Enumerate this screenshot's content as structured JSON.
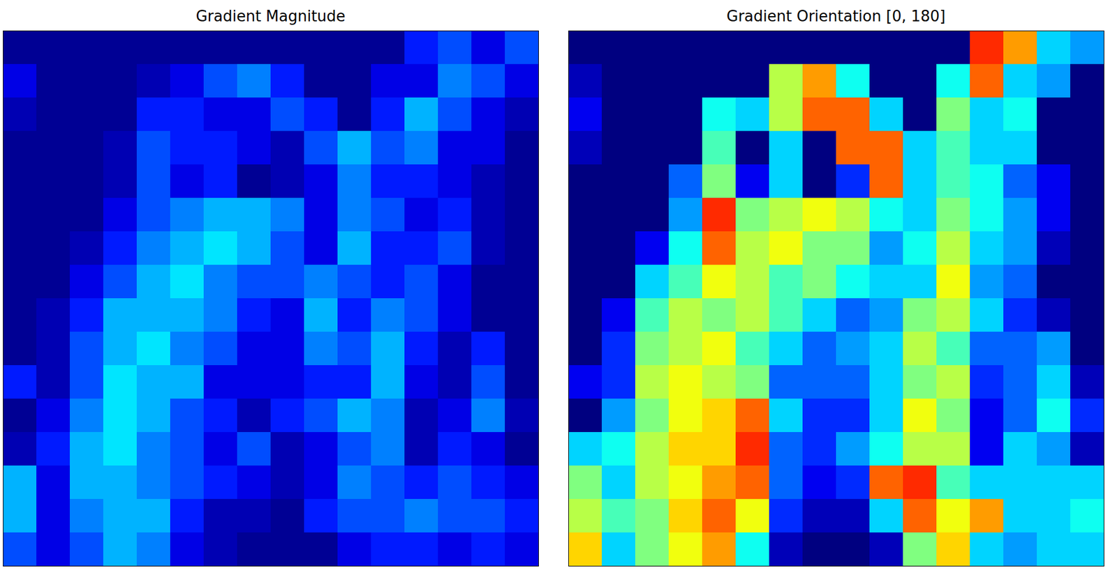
{
  "chart_data": [
    {
      "type": "heatmap",
      "title": "Gradient Magnitude",
      "tick_labels": false,
      "zlim": [
        0,
        1
      ],
      "values": [
        [
          0.02,
          0.02,
          0.02,
          0.02,
          0.02,
          0.02,
          0.02,
          0.02,
          0.02,
          0.02,
          0.02,
          0.02,
          0.15,
          0.2,
          0.1,
          0.2
        ],
        [
          0.1,
          0.02,
          0.02,
          0.02,
          0.05,
          0.1,
          0.2,
          0.25,
          0.15,
          0.02,
          0.02,
          0.1,
          0.1,
          0.25,
          0.2,
          0.1
        ],
        [
          0.05,
          0.02,
          0.02,
          0.02,
          0.15,
          0.15,
          0.1,
          0.1,
          0.2,
          0.15,
          0.02,
          0.15,
          0.3,
          0.2,
          0.1,
          0.05
        ],
        [
          0.02,
          0.02,
          0.02,
          0.05,
          0.2,
          0.15,
          0.15,
          0.1,
          0.05,
          0.2,
          0.3,
          0.2,
          0.25,
          0.1,
          0.1,
          0.02
        ],
        [
          0.02,
          0.02,
          0.02,
          0.05,
          0.2,
          0.1,
          0.15,
          0.02,
          0.05,
          0.1,
          0.25,
          0.15,
          0.15,
          0.1,
          0.05,
          0.02
        ],
        [
          0.02,
          0.02,
          0.02,
          0.1,
          0.2,
          0.25,
          0.3,
          0.3,
          0.25,
          0.1,
          0.25,
          0.2,
          0.1,
          0.15,
          0.05,
          0.02
        ],
        [
          0.02,
          0.02,
          0.05,
          0.15,
          0.25,
          0.3,
          0.35,
          0.3,
          0.2,
          0.1,
          0.3,
          0.15,
          0.15,
          0.2,
          0.05,
          0.02
        ],
        [
          0.02,
          0.02,
          0.1,
          0.2,
          0.3,
          0.35,
          0.25,
          0.2,
          0.2,
          0.25,
          0.2,
          0.15,
          0.2,
          0.1,
          0.02,
          0.02
        ],
        [
          0.02,
          0.05,
          0.15,
          0.3,
          0.3,
          0.3,
          0.25,
          0.15,
          0.1,
          0.3,
          0.15,
          0.25,
          0.2,
          0.1,
          0.02,
          0.02
        ],
        [
          0.02,
          0.05,
          0.2,
          0.3,
          0.35,
          0.25,
          0.2,
          0.1,
          0.1,
          0.25,
          0.2,
          0.3,
          0.15,
          0.05,
          0.15,
          0.02
        ],
        [
          0.15,
          0.05,
          0.2,
          0.35,
          0.3,
          0.3,
          0.1,
          0.1,
          0.1,
          0.15,
          0.15,
          0.3,
          0.1,
          0.05,
          0.2,
          0.02
        ],
        [
          0.02,
          0.1,
          0.25,
          0.35,
          0.3,
          0.2,
          0.15,
          0.05,
          0.15,
          0.2,
          0.3,
          0.25,
          0.05,
          0.1,
          0.25,
          0.05
        ],
        [
          0.05,
          0.15,
          0.3,
          0.35,
          0.25,
          0.2,
          0.1,
          0.2,
          0.05,
          0.1,
          0.2,
          0.25,
          0.05,
          0.15,
          0.1,
          0.02
        ],
        [
          0.3,
          0.1,
          0.3,
          0.3,
          0.25,
          0.2,
          0.15,
          0.1,
          0.05,
          0.1,
          0.25,
          0.2,
          0.15,
          0.2,
          0.15,
          0.1
        ],
        [
          0.3,
          0.1,
          0.25,
          0.3,
          0.3,
          0.15,
          0.05,
          0.05,
          0.02,
          0.15,
          0.2,
          0.2,
          0.25,
          0.2,
          0.2,
          0.15
        ],
        [
          0.2,
          0.1,
          0.2,
          0.3,
          0.25,
          0.1,
          0.05,
          0.02,
          0.02,
          0.02,
          0.1,
          0.15,
          0.15,
          0.1,
          0.15,
          0.1
        ]
      ]
    },
    {
      "type": "heatmap",
      "title": "Gradient Orientation [0, 180]",
      "tick_labels": false,
      "zlim": [
        0,
        180
      ],
      "values": [
        [
          0,
          0,
          0,
          0,
          0,
          0,
          0,
          0,
          0,
          0,
          0,
          0,
          150,
          130,
          60,
          50
        ],
        [
          10,
          0,
          0,
          0,
          0,
          0,
          100,
          130,
          70,
          0,
          0,
          70,
          140,
          60,
          50,
          0
        ],
        [
          20,
          0,
          0,
          0,
          70,
          60,
          100,
          140,
          140,
          60,
          0,
          90,
          60,
          70,
          0,
          0
        ],
        [
          10,
          0,
          0,
          0,
          80,
          0,
          60,
          0,
          140,
          140,
          60,
          80,
          60,
          60,
          0,
          0
        ],
        [
          0,
          0,
          0,
          40,
          90,
          20,
          60,
          0,
          30,
          140,
          60,
          80,
          70,
          40,
          20,
          0
        ],
        [
          0,
          0,
          0,
          50,
          150,
          90,
          100,
          110,
          100,
          70,
          60,
          90,
          70,
          50,
          20,
          0
        ],
        [
          0,
          0,
          20,
          70,
          140,
          100,
          110,
          90,
          90,
          50,
          70,
          100,
          60,
          50,
          10,
          0
        ],
        [
          0,
          0,
          60,
          80,
          110,
          100,
          80,
          90,
          70,
          60,
          60,
          110,
          50,
          40,
          0,
          0
        ],
        [
          0,
          20,
          80,
          100,
          90,
          100,
          80,
          60,
          40,
          50,
          90,
          100,
          60,
          30,
          10,
          0
        ],
        [
          0,
          30,
          90,
          100,
          110,
          80,
          60,
          40,
          50,
          60,
          100,
          80,
          40,
          40,
          50,
          0
        ],
        [
          20,
          30,
          100,
          110,
          100,
          90,
          40,
          40,
          40,
          60,
          90,
          100,
          30,
          40,
          60,
          10
        ],
        [
          0,
          50,
          90,
          110,
          120,
          140,
          60,
          30,
          30,
          60,
          110,
          90,
          20,
          40,
          70,
          30
        ],
        [
          60,
          70,
          100,
          120,
          120,
          150,
          40,
          30,
          50,
          70,
          100,
          100,
          20,
          60,
          50,
          10
        ],
        [
          90,
          60,
          100,
          110,
          130,
          140,
          40,
          20,
          30,
          140,
          150,
          80,
          60,
          60,
          60,
          60
        ],
        [
          100,
          80,
          90,
          120,
          140,
          110,
          30,
          10,
          10,
          60,
          140,
          110,
          130,
          60,
          60,
          70
        ],
        [
          120,
          60,
          90,
          110,
          130,
          70,
          10,
          0,
          0,
          10,
          90,
          120,
          60,
          50,
          60,
          60
        ]
      ]
    }
  ]
}
